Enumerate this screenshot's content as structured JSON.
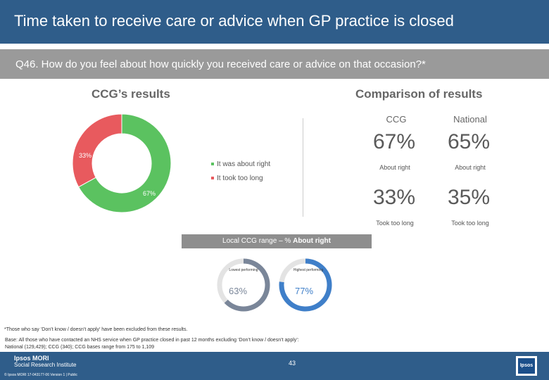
{
  "header": {
    "title": "Time taken to receive care or advice when GP practice is closed",
    "question": "Q46. How do you feel about how quickly you received care or advice on that occasion?*"
  },
  "ccg_heading": "CCG’s results",
  "comparison_heading": "Comparison of results",
  "chart_data": {
    "type": "pie",
    "title": "CCG’s results",
    "categories": [
      "It was about right",
      "It took too long"
    ],
    "values": [
      67,
      33
    ],
    "colors": [
      "#5bc260",
      "#e85a5e"
    ],
    "value_labels": [
      "67%",
      "33%"
    ],
    "legend_position": "right"
  },
  "comparison": {
    "ccg_label": "CCG",
    "national_label": "National",
    "about_right": {
      "ccg": "67%",
      "national": "65%",
      "label": "About right"
    },
    "too_long": {
      "ccg": "33%",
      "national": "35%",
      "label": "Took too long"
    }
  },
  "range": {
    "label_prefix": "Local CCG range – % ",
    "label_bold": "About right",
    "lowest": {
      "caption": "Lowest performing",
      "value": "63%",
      "fraction": 0.63
    },
    "highest": {
      "caption": "Highest performing",
      "value": "77%",
      "fraction": 0.77
    }
  },
  "footnote": "*Those who say ‘Don’t know / doesn’t apply’ have been excluded from these results.",
  "base_line1": "Base: All those who have contacted an NHS service when GP practice closed in past 12 months excluding ‘Don’t know / doesn’t apply’:",
  "base_line2": "National (129,429); CCG (340); CCG bases range from 175 to 1,109",
  "footer": {
    "brand": "Ipsos MORI",
    "sub1": "Social Research Institute",
    "copyright": "© Ipsos MORI     17-043177-06 Version 1 | Public",
    "page": "43",
    "side_logo": "Ipsos"
  },
  "colors": {
    "navy": "#2f5d8a",
    "green": "#5bc260",
    "red": "#e85a5e",
    "blue": "#3f7fc9",
    "grey": "#7a8699"
  }
}
